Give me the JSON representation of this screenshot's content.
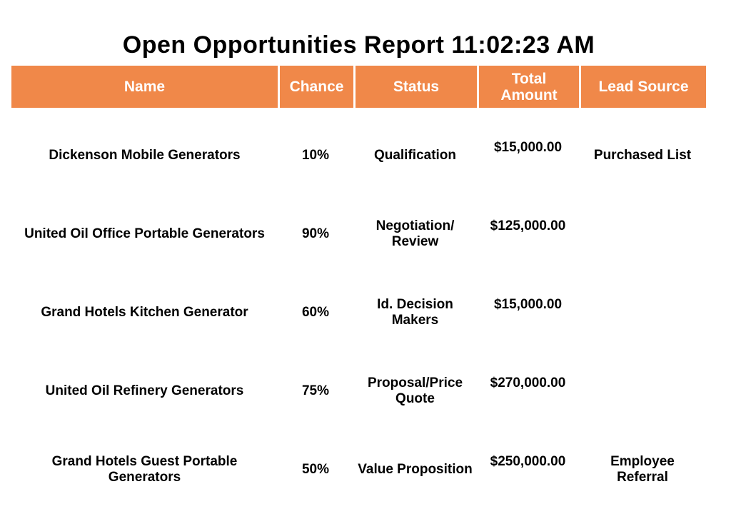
{
  "title": "Open Opportunities Report 11:02:23 AM",
  "colors": {
    "header_bg": "#F08849",
    "header_text": "#FFFFFF",
    "body_text": "#000000"
  },
  "table": {
    "columns": [
      {
        "label": "Name"
      },
      {
        "label": "Chance"
      },
      {
        "label": "Status"
      },
      {
        "label": "Total Amount"
      },
      {
        "label": "Lead Source"
      }
    ],
    "rows": [
      {
        "name": "Dickenson Mobile Generators",
        "chance": "10%",
        "status": "Qualification",
        "total_amount": "$15,000.00",
        "lead_source": "Purchased List"
      },
      {
        "name": "United Oil Office Portable Generators",
        "chance": "90%",
        "status": "Negotiation/\nReview",
        "total_amount": "$125,000.00",
        "lead_source": ""
      },
      {
        "name": "Grand Hotels Kitchen Generator",
        "chance": "60%",
        "status": "Id. Decision\nMakers",
        "total_amount": "$15,000.00",
        "lead_source": ""
      },
      {
        "name": "United Oil Refinery Generators",
        "chance": "75%",
        "status": "Proposal/Price\nQuote",
        "total_amount": "$270,000.00",
        "lead_source": ""
      },
      {
        "name": "Grand Hotels Guest Portable\nGenerators",
        "chance": "50%",
        "status": "Value Proposition",
        "total_amount": "$250,000.00",
        "lead_source": "Employee\nReferral"
      }
    ]
  }
}
